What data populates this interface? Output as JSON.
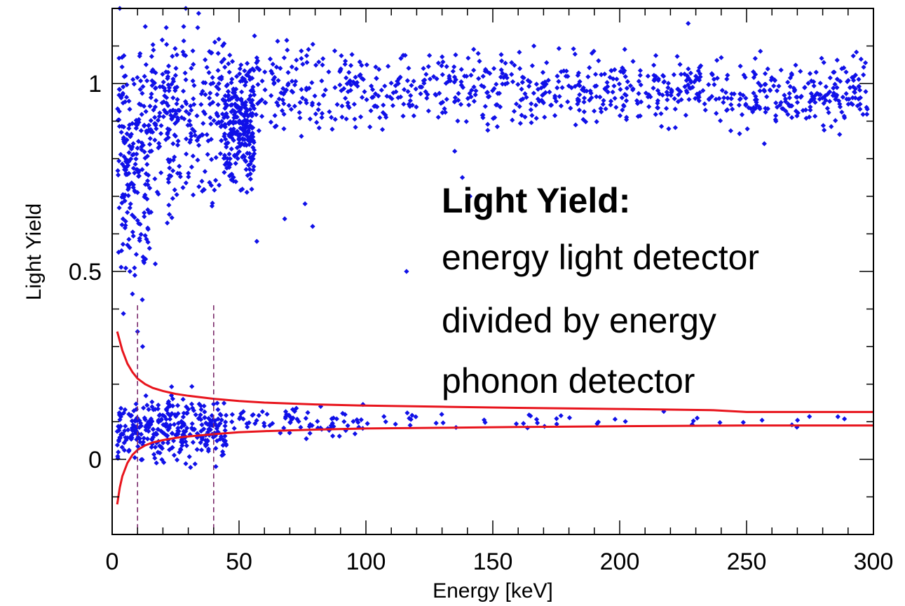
{
  "chart_data": {
    "type": "scatter",
    "title": "",
    "xlabel": "Energy [keV]",
    "ylabel": "Light Yield",
    "xlim": [
      0,
      300
    ],
    "ylim": [
      -0.2,
      1.2
    ],
    "xticks": [
      0,
      50,
      100,
      150,
      200,
      250,
      300
    ],
    "yticks": [
      0,
      0.5,
      1
    ],
    "grid": false,
    "colors": {
      "points": "#1010e8",
      "band_lines": "#e8141c",
      "threshold_lines": "#7a2a6a"
    },
    "annotation": {
      "title": "Light Yield:",
      "lines": [
        "energy light detector",
        "divided by energy",
        "phonon detector"
      ]
    },
    "threshold_lines_x": [
      10,
      40
    ],
    "threshold_lines_top_y": 0.41,
    "band_upper": {
      "x": [
        2,
        4,
        6,
        8,
        10,
        13,
        16,
        20,
        25,
        30,
        40,
        50,
        60,
        80,
        100,
        130,
        160,
        200,
        236,
        250,
        300
      ],
      "y": [
        0.34,
        0.29,
        0.255,
        0.232,
        0.215,
        0.2,
        0.19,
        0.182,
        0.174,
        0.169,
        0.161,
        0.155,
        0.151,
        0.146,
        0.143,
        0.14,
        0.137,
        0.134,
        0.131,
        0.126,
        0.126
      ]
    },
    "band_lower": {
      "x": [
        2,
        3,
        4,
        6,
        8,
        10,
        13,
        16,
        20,
        25,
        30,
        40,
        50,
        60,
        80,
        100,
        130,
        160,
        200,
        250,
        300
      ],
      "y": [
        -0.12,
        -0.075,
        -0.045,
        -0.01,
        0.012,
        0.025,
        0.037,
        0.045,
        0.051,
        0.057,
        0.061,
        0.067,
        0.072,
        0.075,
        0.079,
        0.082,
        0.084,
        0.086,
        0.088,
        0.09,
        0.09
      ]
    },
    "series": [
      {
        "clusters": [
          {
            "x_range": [
              95,
              298
            ],
            "y_center": 0.98,
            "y_spread": 0.045,
            "count": 700
          },
          {
            "x_range": [
              55,
              95
            ],
            "y_center": 0.99,
            "y_spread": 0.055,
            "count": 140
          },
          {
            "x_range": [
              44,
              56
            ],
            "y_center": 0.9,
            "y_spread": 0.09,
            "count": 260
          },
          {
            "x_range": [
              15,
              44
            ],
            "y_center": 0.92,
            "y_spread": 0.11,
            "count": 260
          },
          {
            "x_range": [
              2,
              15
            ],
            "y_center": 0.78,
            "y_spread": 0.15,
            "count": 200
          },
          {
            "x_range": [
              2,
              45
            ],
            "y_center": 0.08,
            "y_spread": 0.04,
            "count": 340
          },
          {
            "x_range": [
              45,
              100
            ],
            "y_center": 0.1,
            "y_spread": 0.02,
            "count": 80
          },
          {
            "x_range": [
              100,
              290
            ],
            "y_center": 0.105,
            "y_spread": 0.012,
            "count": 45
          }
        ],
        "points": [
          {
            "x": 3,
            "y": 1.2
          },
          {
            "x": 20,
            "y": 1.21
          },
          {
            "x": 29,
            "y": 1.2
          },
          {
            "x": 41,
            "y": 1.21
          },
          {
            "x": 227,
            "y": 1.16
          },
          {
            "x": 257,
            "y": 0.84
          },
          {
            "x": 68,
            "y": 0.64
          },
          {
            "x": 76,
            "y": 0.68
          },
          {
            "x": 79,
            "y": 0.62
          },
          {
            "x": 57,
            "y": 0.58
          },
          {
            "x": 116,
            "y": 0.5
          },
          {
            "x": 7,
            "y": 0.5
          },
          {
            "x": 8,
            "y": 0.44
          },
          {
            "x": 17,
            "y": 0.52
          },
          {
            "x": 135,
            "y": 0.82
          },
          {
            "x": 138,
            "y": 0.75
          },
          {
            "x": 141,
            "y": 0.7
          },
          {
            "x": 10,
            "y": 0.34
          },
          {
            "x": 12,
            "y": 0.3
          }
        ]
      }
    ]
  }
}
